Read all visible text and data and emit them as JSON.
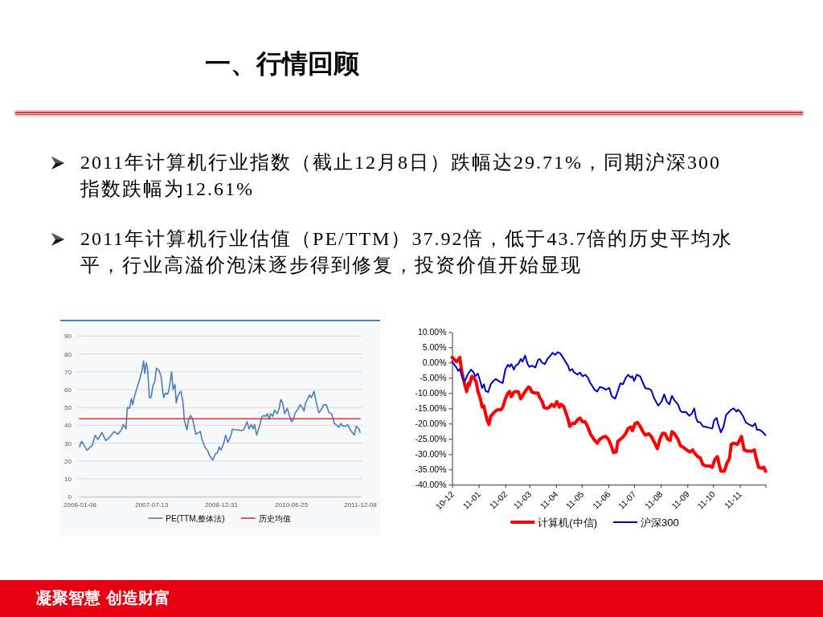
{
  "chart_data": [
    {
      "type": "other",
      "title": "一、行情回顾",
      "annotations": [
        "2011年计算机行业指数（截止12月8日）跌幅达29.71%，同期沪深300指数跌幅为12.61%",
        "2011年计算机行业估值（PE/TTM）37.92倍，低于43.7倍的历史平均水平，行业高溢价泡沫逐步得到修复，投资价值开始显现",
        "凝聚智慧 创造财富"
      ]
    },
    {
      "type": "line",
      "legend": "bottom",
      "grid": "y",
      "xlim": [
        "2006-01-06",
        "2011-12-08"
      ],
      "xticks": [
        "2006-01-06",
        "2007-07-13",
        "2008-12-31",
        "2010-06-25",
        "2011-12-08"
      ],
      "ylim": [
        0,
        90
      ],
      "yticks": [
        0,
        10,
        20,
        30,
        40,
        50,
        60,
        70,
        80,
        90
      ],
      "series": [
        {
          "name": "PE(TTM,整体法)",
          "color": "#4a7ebb",
          "x": [
            "2006-01-06",
            "2006-01-22",
            "2006-03-05",
            "2006-04-15",
            "2006-05-06",
            "2006-05-27",
            "2006-06-27",
            "2006-07-28",
            "2006-08-28",
            "2006-09-28",
            "2006-10-29",
            "2006-11-25",
            "2006-12-09",
            "2006-12-30",
            "2007-01-09",
            "2007-01-26",
            "2007-02-10",
            "2007-02-20",
            "2007-03-08",
            "2007-03-29",
            "2007-04-19",
            "2007-05-03",
            "2007-05-14",
            "2007-05-24",
            "2007-06-03",
            "2007-06-14",
            "2007-06-28",
            "2007-07-11",
            "2007-07-25",
            "2007-08-09",
            "2007-08-21",
            "2007-09-11",
            "2007-09-25",
            "2007-10-06",
            "2007-10-16",
            "2007-10-30",
            "2007-11-16",
            "2007-11-26",
            "2007-12-17",
            "2007-12-27",
            "2008-01-11",
            "2008-01-21",
            "2008-02-01",
            "2008-02-17",
            "2008-02-27",
            "2008-03-15",
            "2008-03-23",
            "2008-04-03",
            "2008-04-13",
            "2008-04-25",
            "2008-05-10",
            "2008-05-24",
            "2008-06-06",
            "2008-06-20",
            "2008-07-11",
            "2008-07-25",
            "2008-08-07",
            "2008-09-01",
            "2008-09-21",
            "2008-10-08",
            "2008-10-29",
            "2008-11-18",
            "2008-12-03",
            "2008-12-17",
            "2008-12-30",
            "2009-01-21",
            "2009-02-05",
            "2009-02-21",
            "2009-03-14",
            "2009-03-30",
            "2009-04-14",
            "2009-05-04",
            "2009-06-04",
            "2009-06-25",
            "2009-07-20",
            "2009-08-05",
            "2009-08-22",
            "2009-09-05",
            "2009-09-16",
            "2009-10-02",
            "2009-10-23",
            "2009-11-12",
            "2009-11-27",
            "2009-12-11",
            "2009-12-24",
            "2010-01-07",
            "2010-01-18",
            "2010-02-03",
            "2010-02-17",
            "2010-03-10",
            "2010-03-25",
            "2010-04-06",
            "2010-04-20",
            "2010-05-05",
            "2010-05-26",
            "2010-06-11",
            "2010-06-28",
            "2010-07-12",
            "2010-07-26",
            "2010-08-12",
            "2010-09-02",
            "2010-09-18",
            "2010-10-03",
            "2010-10-13",
            "2010-10-29",
            "2010-11-13",
            "2010-11-27",
            "2010-12-18",
            "2011-01-04",
            "2011-01-24",
            "2011-02-10",
            "2011-03-02",
            "2011-03-23",
            "2011-04-13",
            "2011-05-03",
            "2011-05-24",
            "2011-06-14",
            "2011-06-28",
            "2011-07-13",
            "2011-07-29",
            "2011-08-19",
            "2011-09-04",
            "2011-09-19",
            "2011-10-09",
            "2011-10-24",
            "2011-11-09",
            "2011-11-30",
            "2011-12-08"
          ],
          "values": [
            28,
            31,
            26,
            29,
            34.5,
            32,
            36,
            31.5,
            33.5,
            36.5,
            35,
            37.5,
            40.5,
            38,
            50,
            49.5,
            55,
            51.5,
            57,
            62,
            67,
            71,
            76,
            69,
            75,
            72,
            55.5,
            55.5,
            62,
            64.5,
            72,
            70.5,
            68,
            61,
            55.5,
            58,
            57.5,
            60,
            70,
            60,
            63,
            52.5,
            56,
            58.5,
            59,
            52,
            43,
            40,
            37.5,
            43,
            45.5,
            44,
            40,
            35,
            36,
            36.5,
            32,
            27.5,
            25.5,
            22.5,
            20.5,
            24,
            24.5,
            28,
            26,
            30,
            34.5,
            30.5,
            33.5,
            38,
            37.5,
            37.5,
            37,
            37.5,
            42,
            38,
            40.5,
            38,
            40.5,
            34.5,
            39.5,
            45,
            45.5,
            45,
            46.5,
            43.5,
            46.5,
            45,
            48.5,
            46.5,
            49.5,
            54.5,
            52.5,
            46.5,
            49.5,
            45.5,
            42,
            43.5,
            47,
            48.5,
            51.5,
            50,
            48,
            52.5,
            54.5,
            57,
            55.5,
            59,
            53,
            47,
            48.5,
            51.5,
            51.5,
            47,
            46.5,
            41,
            40,
            39,
            41,
            39.5,
            39.5,
            40.5,
            38,
            36,
            34.5,
            39.5,
            38,
            36
          ]
        },
        {
          "name": "历史均值",
          "color": "#d03a35",
          "x": [
            "2006-01-06",
            "2011-12-08"
          ],
          "values": [
            43.7,
            43.7
          ]
        }
      ]
    },
    {
      "type": "line",
      "legend": "bottom",
      "xlim": [
        "2010-12-08",
        "2011-12-08"
      ],
      "xticks": [
        {
          "value": "2010-12-08",
          "label": "10-12"
        },
        {
          "value": "2011-01-08",
          "label": "11-01"
        },
        {
          "value": "2011-02-08",
          "label": "11-02"
        },
        {
          "value": "2011-03-08",
          "label": "11-03"
        },
        {
          "value": "2011-04-08",
          "label": "11-04"
        },
        {
          "value": "2011-05-08",
          "label": "11-05"
        },
        {
          "value": "2011-06-08",
          "label": "11-06"
        },
        {
          "value": "2011-07-08",
          "label": "11-07"
        },
        {
          "value": "2011-08-08",
          "label": "11-08"
        },
        {
          "value": "2011-09-08",
          "label": "11-09"
        },
        {
          "value": "2011-10-08",
          "label": "11-10"
        },
        {
          "value": "2011-11-08",
          "label": "11-11"
        },
        {
          "value": "2011-12-08",
          "label": null
        }
      ],
      "ylim": [
        -40,
        10
      ],
      "yticks": [
        {
          "value": -40,
          "label": "-40.00%"
        },
        {
          "value": -35,
          "label": "-35.00%"
        },
        {
          "value": -30,
          "label": "-30.00%"
        },
        {
          "value": -25,
          "label": "-25.00%"
        },
        {
          "value": -20,
          "label": "-20.00%"
        },
        {
          "value": -15,
          "label": "-15.00%"
        },
        {
          "value": -10,
          "label": "-10.00%"
        },
        {
          "value": -5,
          "label": "-5.00%"
        },
        {
          "value": 0,
          "label": "0.00%"
        },
        {
          "value": 5,
          "label": "5.00%"
        },
        {
          "value": 10,
          "label": "10.00%"
        }
      ],
      "series": [
        {
          "name": "计算机(中信)",
          "color": "#ff0000",
          "x": [
            "2010-12-08",
            "2010-12-10",
            "2010-12-13",
            "2010-12-15",
            "2010-12-17",
            "2010-12-18",
            "2010-12-20",
            "2010-12-23",
            "2010-12-25",
            "2010-12-27",
            "2010-12-28",
            "2010-12-31",
            "2011-01-02",
            "2011-01-05",
            "2011-01-07",
            "2011-01-10",
            "2011-01-12",
            "2011-01-14",
            "2011-01-16",
            "2011-01-18",
            "2011-01-20",
            "2011-01-22",
            "2011-01-26",
            "2011-01-29",
            "2011-02-03",
            "2011-02-05",
            "2011-02-08",
            "2011-02-11",
            "2011-02-13",
            "2011-02-15",
            "2011-02-18",
            "2011-02-20",
            "2011-02-23",
            "2011-02-26",
            "2011-03-01",
            "2011-03-04",
            "2011-03-07",
            "2011-03-09",
            "2011-03-11",
            "2011-03-15",
            "2011-03-18",
            "2011-03-20",
            "2011-03-23",
            "2011-03-25",
            "2011-03-28",
            "2011-03-31",
            "2011-04-03",
            "2011-04-06",
            "2011-04-09",
            "2011-04-12",
            "2011-04-14",
            "2011-04-17",
            "2011-04-20",
            "2011-04-22",
            "2011-04-24",
            "2011-04-27",
            "2011-04-30",
            "2011-05-03",
            "2011-05-06",
            "2011-05-09",
            "2011-05-12",
            "2011-05-15",
            "2011-05-18",
            "2011-05-22",
            "2011-05-26",
            "2011-05-29",
            "2011-06-02",
            "2011-06-05",
            "2011-06-08",
            "2011-06-11",
            "2011-06-14",
            "2011-06-17",
            "2011-06-19",
            "2011-06-22",
            "2011-06-25",
            "2011-06-28",
            "2011-07-01",
            "2011-07-04",
            "2011-07-06",
            "2011-07-09",
            "2011-07-12",
            "2011-07-15",
            "2011-07-18",
            "2011-07-21",
            "2011-07-25",
            "2011-07-28",
            "2011-08-01",
            "2011-08-04",
            "2011-08-07",
            "2011-08-10",
            "2011-08-13",
            "2011-08-16",
            "2011-08-19",
            "2011-08-21",
            "2011-08-24",
            "2011-08-28",
            "2011-08-31",
            "2011-09-03",
            "2011-09-07",
            "2011-09-11",
            "2011-09-14",
            "2011-09-17",
            "2011-09-20",
            "2011-09-23",
            "2011-09-26",
            "2011-09-30",
            "2011-10-04",
            "2011-10-07",
            "2011-10-10",
            "2011-10-13",
            "2011-10-15",
            "2011-10-17",
            "2011-10-21",
            "2011-10-24",
            "2011-10-27",
            "2011-10-29",
            "2011-11-01",
            "2011-11-05",
            "2011-11-07",
            "2011-11-10",
            "2011-11-13",
            "2011-11-17",
            "2011-11-22",
            "2011-11-25",
            "2011-11-27",
            "2011-11-30",
            "2011-12-03",
            "2011-12-06",
            "2011-12-08"
          ],
          "values": [
            1.7,
            1.2,
            0.3,
            0.8,
            1.7,
            -0.5,
            -4.0,
            -7.5,
            -9.5,
            -6.8,
            -7.5,
            -4.5,
            -4.9,
            -6.2,
            -9.3,
            -11.9,
            -14.6,
            -14.2,
            -16.8,
            -19.0,
            -20.3,
            -17.6,
            -16.3,
            -15.6,
            -15.4,
            -14.6,
            -11.9,
            -10.0,
            -9.5,
            -11.2,
            -9.7,
            -9.5,
            -9.5,
            -11.9,
            -10.4,
            -9.1,
            -8.0,
            -8.4,
            -9.7,
            -10.0,
            -10.0,
            -11.5,
            -12.8,
            -14.7,
            -15.0,
            -14.7,
            -13.7,
            -14.4,
            -12.8,
            -14.6,
            -13.7,
            -14.4,
            -16.8,
            -18.5,
            -20.9,
            -19.9,
            -19.9,
            -18.8,
            -18.2,
            -19.4,
            -19.4,
            -21.1,
            -23.3,
            -25.1,
            -26.4,
            -25.1,
            -24.4,
            -24.2,
            -25.1,
            -27.0,
            -29.5,
            -29.3,
            -25.8,
            -25.1,
            -24.4,
            -23.3,
            -21.6,
            -21.1,
            -22.3,
            -20.0,
            -19.6,
            -20.9,
            -22.5,
            -23.8,
            -23.3,
            -24.2,
            -26.4,
            -28.2,
            -25.1,
            -23.2,
            -23.2,
            -25.1,
            -25.5,
            -22.6,
            -23.3,
            -25.1,
            -27.3,
            -27.7,
            -28.6,
            -29.3,
            -28.6,
            -29.9,
            -30.8,
            -31.2,
            -33.4,
            -33.9,
            -33.9,
            -34.3,
            -31.7,
            -30.8,
            -33.4,
            -35.6,
            -35.6,
            -33.0,
            -31.4,
            -26.8,
            -26.4,
            -26.8,
            -25.9,
            -24.2,
            -28.6,
            -29.0,
            -29.0,
            -28.6,
            -31.2,
            -34.3,
            -34.6,
            -34.3,
            -35.6
          ]
        },
        {
          "name": "沪深300",
          "color": "#0000cc",
          "x": [
            "2010-12-08",
            "2010-12-10",
            "2010-12-13",
            "2010-12-15",
            "2010-12-17",
            "2010-12-19",
            "2010-12-21",
            "2010-12-23",
            "2010-12-26",
            "2010-12-30",
            "2011-01-02",
            "2011-01-04",
            "2011-01-07",
            "2011-01-09",
            "2011-01-12",
            "2011-01-14",
            "2011-01-16",
            "2011-01-19",
            "2011-01-22",
            "2011-01-25",
            "2011-01-28",
            "2011-02-01",
            "2011-02-05",
            "2011-02-08",
            "2011-02-11",
            "2011-02-13",
            "2011-02-15",
            "2011-02-18",
            "2011-02-20",
            "2011-02-23",
            "2011-02-26",
            "2011-02-28",
            "2011-03-03",
            "2011-03-06",
            "2011-03-08",
            "2011-03-11",
            "2011-03-15",
            "2011-03-18",
            "2011-03-20",
            "2011-03-23",
            "2011-03-26",
            "2011-03-29",
            "2011-04-01",
            "2011-04-04",
            "2011-04-07",
            "2011-04-10",
            "2011-04-13",
            "2011-04-16",
            "2011-04-19",
            "2011-04-22",
            "2011-04-24",
            "2011-04-27",
            "2011-04-29",
            "2011-05-03",
            "2011-05-06",
            "2011-05-09",
            "2011-05-12",
            "2011-05-15",
            "2011-05-18",
            "2011-05-23",
            "2011-05-26",
            "2011-05-29",
            "2011-06-02",
            "2011-06-05",
            "2011-06-09",
            "2011-06-12",
            "2011-06-16",
            "2011-06-19",
            "2011-06-22",
            "2011-06-25",
            "2011-06-28",
            "2011-07-01",
            "2011-07-04",
            "2011-07-06",
            "2011-07-08",
            "2011-07-11",
            "2011-07-15",
            "2011-07-18",
            "2011-07-21",
            "2011-07-25",
            "2011-07-28",
            "2011-07-31",
            "2011-08-05",
            "2011-08-09",
            "2011-08-12",
            "2011-08-15",
            "2011-08-18",
            "2011-08-21",
            "2011-08-24",
            "2011-08-28",
            "2011-08-31",
            "2011-09-03",
            "2011-09-06",
            "2011-09-10",
            "2011-09-13",
            "2011-09-16",
            "2011-09-18",
            "2011-09-20",
            "2011-09-23",
            "2011-09-26",
            "2011-09-30",
            "2011-10-04",
            "2011-10-07",
            "2011-10-09",
            "2011-10-12",
            "2011-10-14",
            "2011-10-17",
            "2011-10-20",
            "2011-10-23",
            "2011-10-26",
            "2011-10-29",
            "2011-11-01",
            "2011-11-04",
            "2011-11-06",
            "2011-11-09",
            "2011-11-12",
            "2011-11-15",
            "2011-11-19",
            "2011-11-23",
            "2011-11-26",
            "2011-11-28",
            "2011-12-01",
            "2011-12-04",
            "2011-12-08"
          ],
          "values": [
            0.3,
            -0.5,
            -1.6,
            -2.7,
            -2.1,
            -4.0,
            -5.6,
            -6.0,
            -4.0,
            -2.3,
            -3.2,
            -4.5,
            -3.6,
            -5.4,
            -8.4,
            -7.1,
            -9.3,
            -9.7,
            -7.1,
            -6.0,
            -5.4,
            -6.2,
            -6.7,
            -2.3,
            -0.7,
            -1.4,
            -0.5,
            -2.3,
            -1.0,
            -0.5,
            1.2,
            0.3,
            2.3,
            -0.5,
            -1.4,
            -1.0,
            -1.6,
            0.8,
            1.2,
            -0.1,
            -0.5,
            1.2,
            2.1,
            3.2,
            2.5,
            3.4,
            3.0,
            1.7,
            0.3,
            -1.0,
            -2.7,
            -2.1,
            -3.2,
            -3.9,
            -3.3,
            -4.5,
            -4.0,
            -4.9,
            -6.7,
            -8.9,
            -9.5,
            -8.0,
            -8.3,
            -8.9,
            -8.3,
            -11.1,
            -11.8,
            -9.3,
            -6.8,
            -7.1,
            -5.1,
            -4.0,
            -4.9,
            -4.5,
            -6.0,
            -4.0,
            -4.5,
            -6.5,
            -8.4,
            -8.6,
            -9.1,
            -11.5,
            -14.1,
            -12.8,
            -10.4,
            -12.8,
            -13.7,
            -10.9,
            -12.4,
            -13.7,
            -15.9,
            -16.3,
            -16.1,
            -17.4,
            -16.8,
            -15.0,
            -18.1,
            -19.4,
            -19.6,
            -20.9,
            -21.1,
            -21.4,
            -21.6,
            -19.0,
            -18.1,
            -20.3,
            -22.9,
            -21.1,
            -17.2,
            -16.3,
            -15.4,
            -15.0,
            -16.1,
            -15.4,
            -16.3,
            -17.6,
            -19.6,
            -20.3,
            -20.9,
            -19.9,
            -22.0,
            -22.0,
            -22.6,
            -23.8
          ]
        }
      ]
    }
  ]
}
